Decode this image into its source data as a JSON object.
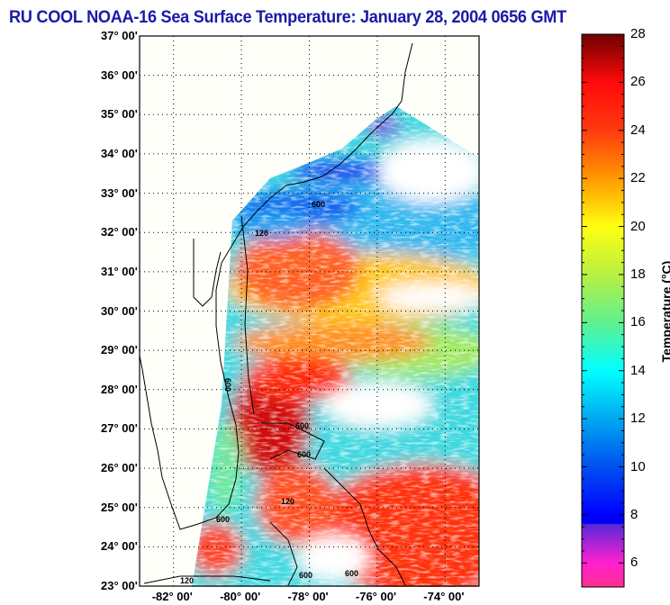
{
  "title": "RU COOL  NOAA-16  Sea Surface Temperature:  January 28, 2004 0656 GMT",
  "map": {
    "lat_labels": [
      "37° 00'",
      "36° 00'",
      "35° 00'",
      "34° 00'",
      "33° 00'",
      "32° 00'",
      "31° 00'",
      "30° 00'",
      "29° 00'",
      "28° 00'",
      "27° 00'",
      "26° 00'",
      "25° 00'",
      "24° 00'",
      "23° 00'"
    ],
    "lon_labels": [
      "-82° 00'",
      "-80° 00'",
      "-78° 00'",
      "-76° 00'",
      "-74° 00'"
    ],
    "lat_range": [
      23,
      37
    ],
    "lon_range": [
      -83,
      -73
    ],
    "contour_labels": [
      "120",
      "600",
      "600",
      "600",
      "120",
      "600",
      "600",
      "600",
      "120",
      "600"
    ]
  },
  "colorbar": {
    "label": "Temperature (°C)",
    "range": [
      5,
      28
    ],
    "ticks": [
      "28",
      "26",
      "24",
      "22",
      "20",
      "18",
      "16",
      "14",
      "12",
      "10",
      "8",
      "6"
    ],
    "colors": {
      "28": "#6e0000",
      "26": "#ff0a0a",
      "24": "#ff3a10",
      "22": "#ff9900",
      "20": "#ffff10",
      "18": "#b8f040",
      "16": "#60f090",
      "14": "#00ffff",
      "12": "#00a8f0",
      "10": "#0050f0",
      "8": "#0000ff",
      "7.6": "#5828d8",
      "6": "#ff20d0",
      "5": "#ff3090"
    }
  }
}
